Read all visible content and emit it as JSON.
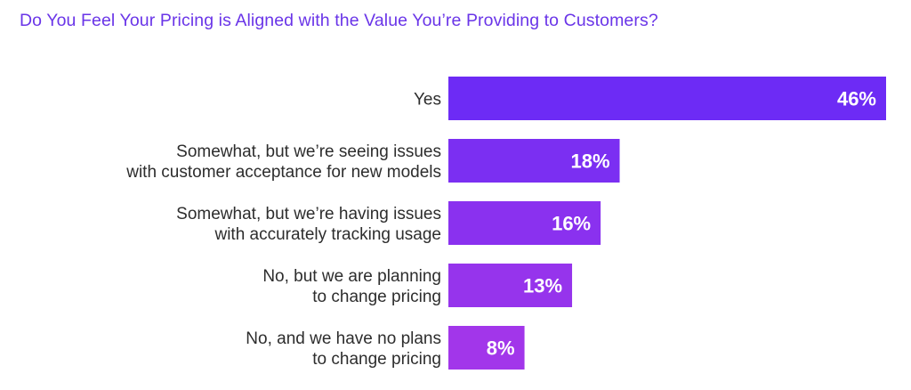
{
  "chart_data": {
    "type": "bar",
    "orientation": "horizontal",
    "title": "Do You Feel Your Pricing is Aligned with the Value You’re Providing to Customers?",
    "categories": [
      [
        "Yes"
      ],
      [
        "Somewhat, but we’re seeing issues",
        "with customer acceptance for new models"
      ],
      [
        "Somewhat, but we’re having issues",
        "with accurately tracking usage"
      ],
      [
        "No, but we are planning",
        "to change pricing"
      ],
      [
        "No, and we have no plans",
        "to change pricing"
      ]
    ],
    "values": [
      46,
      18,
      16,
      13,
      8
    ],
    "value_labels": [
      "46%",
      "18%",
      "16%",
      "13%",
      "8%"
    ],
    "xlim": [
      0,
      46
    ],
    "unit": "%",
    "grid": false,
    "legend": "none",
    "colors": [
      "#6d2bf5",
      "#7b2ff2",
      "#8a31ef",
      "#9634ec",
      "#a236ea"
    ]
  }
}
